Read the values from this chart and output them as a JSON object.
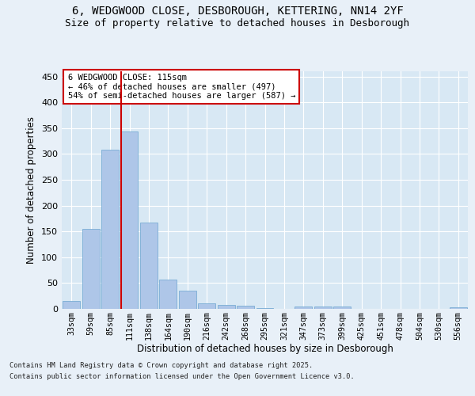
{
  "title1": "6, WEDGWOOD CLOSE, DESBOROUGH, KETTERING, NN14 2YF",
  "title2": "Size of property relative to detached houses in Desborough",
  "xlabel": "Distribution of detached houses by size in Desborough",
  "ylabel": "Number of detached properties",
  "categories": [
    "33sqm",
    "59sqm",
    "85sqm",
    "111sqm",
    "138sqm",
    "164sqm",
    "190sqm",
    "216sqm",
    "242sqm",
    "268sqm",
    "295sqm",
    "321sqm",
    "347sqm",
    "373sqm",
    "399sqm",
    "425sqm",
    "451sqm",
    "478sqm",
    "504sqm",
    "530sqm",
    "556sqm"
  ],
  "values": [
    15,
    155,
    308,
    343,
    167,
    57,
    35,
    10,
    8,
    6,
    2,
    0,
    4,
    4,
    4,
    0,
    0,
    0,
    0,
    0,
    3
  ],
  "bar_color": "#aec6e8",
  "bar_edge_color": "#7aadd4",
  "vline_index": 3,
  "vline_color": "#cc0000",
  "annotation_line1": "6 WEDGWOOD CLOSE: 115sqm",
  "annotation_line2": "← 46% of detached houses are smaller (497)",
  "annotation_line3": "54% of semi-detached houses are larger (587) →",
  "annotation_box_color": "#ffffff",
  "annotation_box_edge": "#cc0000",
  "background_color": "#e8f0f8",
  "plot_bg_color": "#d8e8f4",
  "grid_color": "#ffffff",
  "footer1": "Contains HM Land Registry data © Crown copyright and database right 2025.",
  "footer2": "Contains public sector information licensed under the Open Government Licence v3.0.",
  "ylim": [
    0,
    460
  ],
  "yticks": [
    0,
    50,
    100,
    150,
    200,
    250,
    300,
    350,
    400,
    450
  ]
}
